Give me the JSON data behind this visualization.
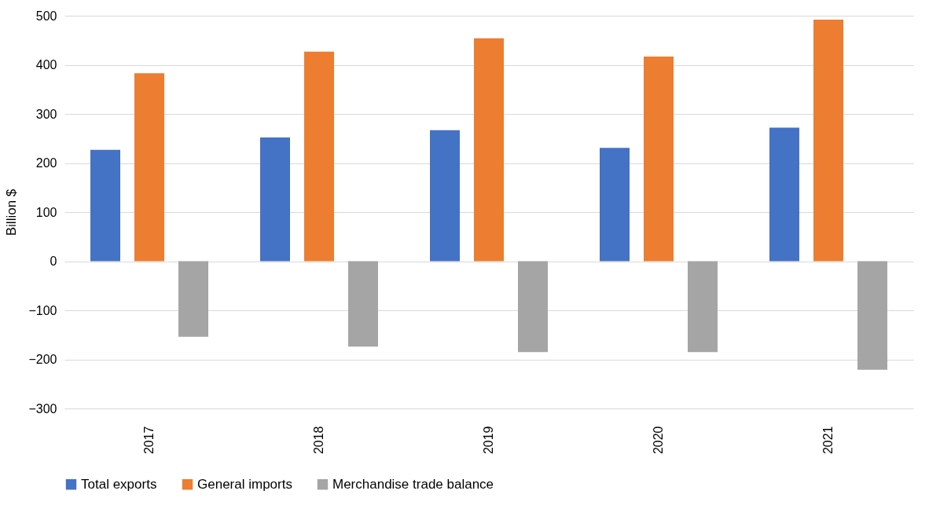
{
  "chart_data": {
    "type": "bar",
    "ylabel": "Billion $",
    "categories": [
      "2017",
      "2018",
      "2019",
      "2020",
      "2021"
    ],
    "series": [
      {
        "name": "Total exports",
        "color": "#4472c4",
        "values": [
          227,
          252,
          267,
          231,
          272
        ]
      },
      {
        "name": "General imports",
        "color": "#ed7d31",
        "values": [
          383,
          427,
          454,
          417,
          492
        ]
      },
      {
        "name": "Merchandise trade balance",
        "color": "#a5a5a5",
        "values": [
          -154,
          -174,
          -185,
          -185,
          -221
        ]
      }
    ],
    "ylim": [
      -300,
      500
    ],
    "yticks": [
      -300,
      -200,
      -100,
      0,
      100,
      200,
      300,
      400,
      500
    ],
    "grid": "y",
    "legend": "bottom"
  }
}
